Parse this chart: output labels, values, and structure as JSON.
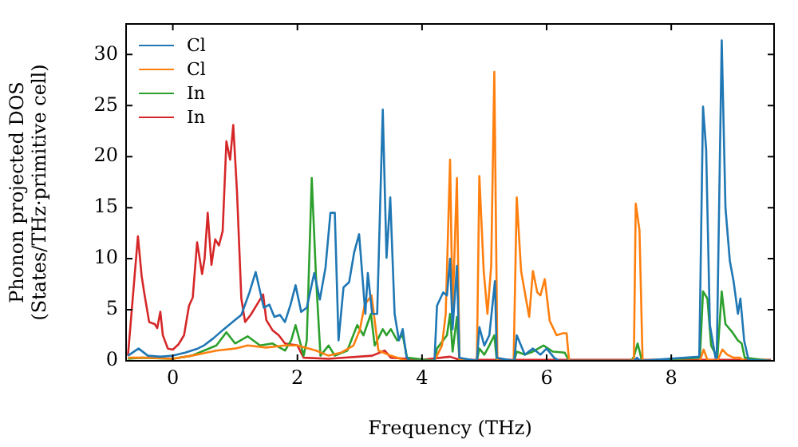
{
  "chart_data": {
    "type": "line",
    "xlabel": "Frequency (THz)",
    "ylabel": "Phonon projected DOS\n(States/THz·primitive cell)",
    "xlim": [
      -0.75,
      9.65
    ],
    "ylim": [
      0,
      33
    ],
    "xticks": [
      0,
      2,
      4,
      6,
      8
    ],
    "yticks": [
      0,
      5,
      10,
      15,
      20,
      25,
      30
    ],
    "grid": false,
    "legend": "top left",
    "marker": "none",
    "line_style": "solid",
    "series": [
      {
        "name": "Cl",
        "color": "#1f77b4",
        "x": [
          -0.72,
          -0.55,
          -0.4,
          -0.2,
          0,
          0.2,
          0.4,
          0.5,
          0.65,
          0.8,
          0.9,
          1.0,
          1.1,
          1.23,
          1.33,
          1.46,
          1.55,
          1.63,
          1.72,
          1.8,
          1.89,
          1.97,
          2.06,
          2.15,
          2.27,
          2.36,
          2.45,
          2.53,
          2.6,
          2.66,
          2.74,
          2.83,
          2.91,
          2.99,
          3.09,
          3.13,
          3.2,
          3.28,
          3.37,
          3.43,
          3.49,
          3.56,
          3.63,
          3.69,
          3.75,
          3.8,
          4.2,
          4.24,
          4.34,
          4.4,
          4.45,
          4.49,
          4.56,
          4.6,
          4.88,
          4.92,
          5.0,
          5.08,
          5.17,
          5.2,
          5.48,
          5.52,
          5.65,
          5.78,
          5.9,
          6.0,
          6.12,
          6.2,
          7.4,
          7.45,
          7.5,
          8.45,
          8.51,
          8.56,
          8.62,
          8.71,
          8.73,
          8.81,
          8.87,
          8.94,
          9.0,
          9.07,
          9.11,
          9.17,
          9.24,
          9.6
        ],
        "values": [
          0.5,
          1.2,
          0.5,
          0.4,
          0.5,
          0.8,
          1.2,
          1.5,
          2.2,
          3.0,
          3.5,
          4.0,
          4.5,
          6.7,
          8.7,
          5.2,
          5.5,
          4.3,
          4.5,
          3.8,
          5.5,
          7.4,
          4.8,
          5.2,
          8.6,
          6.0,
          9.1,
          14.5,
          14.5,
          2.0,
          7.2,
          7.7,
          10.6,
          12.4,
          4.6,
          8.6,
          4.6,
          4.6,
          24.6,
          10.1,
          16.0,
          4.6,
          2.0,
          3.1,
          0.4,
          0,
          0,
          5.4,
          6.7,
          6.4,
          10.0,
          3.1,
          9.3,
          0.3,
          0,
          3.3,
          1.5,
          2.5,
          7.8,
          0.3,
          0,
          2.5,
          0.6,
          1.2,
          0.6,
          1.2,
          0.3,
          0,
          0,
          0.3,
          0,
          0.4,
          24.9,
          20.7,
          3.5,
          0.3,
          0.3,
          31.4,
          15.0,
          9.8,
          7.8,
          4.6,
          6.1,
          2.0,
          0.1,
          0
        ]
      },
      {
        "name": "Cl",
        "color": "#ff7f0e",
        "x": [
          -0.72,
          -0.4,
          0,
          0.3,
          0.7,
          1.0,
          1.2,
          1.5,
          1.8,
          2.0,
          2.3,
          2.5,
          2.7,
          2.9,
          3.0,
          3.08,
          3.19,
          3.3,
          3.5,
          3.75,
          4.2,
          4.32,
          4.38,
          4.45,
          4.49,
          4.56,
          4.6,
          4.88,
          4.92,
          4.99,
          5.05,
          5.11,
          5.16,
          5.21,
          5.47,
          5.52,
          5.59,
          5.65,
          5.72,
          5.78,
          5.85,
          5.9,
          5.97,
          6.05,
          6.16,
          6.26,
          6.32,
          6.36,
          7.37,
          7.4,
          7.43,
          7.49,
          7.54,
          8.46,
          8.52,
          8.58,
          8.74,
          8.82,
          8.9,
          9.0,
          9.1,
          9.17,
          9.6
        ],
        "values": [
          0.3,
          0.3,
          0.2,
          0.5,
          1.0,
          1.2,
          1.5,
          1.3,
          1.5,
          1.5,
          1.0,
          0.5,
          0.8,
          1.5,
          3.0,
          5.5,
          6.4,
          1.0,
          0.5,
          0,
          0,
          1.5,
          4.6,
          19.7,
          4.6,
          17.9,
          0.1,
          0,
          18.1,
          8.8,
          4.6,
          9.3,
          28.3,
          0,
          0,
          16.0,
          8.8,
          6.7,
          4.3,
          8.8,
          6.7,
          6.4,
          8.0,
          3.9,
          2.5,
          2.7,
          2.7,
          0,
          0,
          0.2,
          15.4,
          12.8,
          0,
          0,
          1.1,
          0.1,
          0,
          1.1,
          0.6,
          0.3,
          0.3,
          0,
          0
        ]
      },
      {
        "name": "In",
        "color": "#2ca02c",
        "x": [
          -0.72,
          -0.5,
          0,
          0.3,
          0.5,
          0.7,
          0.86,
          1.0,
          1.2,
          1.4,
          1.6,
          1.8,
          1.9,
          1.97,
          2.1,
          2.15,
          2.23,
          2.3,
          2.37,
          2.5,
          2.6,
          2.8,
          2.96,
          3.06,
          3.18,
          3.24,
          3.37,
          3.43,
          3.5,
          3.6,
          3.69,
          3.76,
          4.2,
          4.24,
          4.4,
          4.45,
          4.49,
          4.56,
          4.6,
          4.88,
          4.92,
          5.0,
          5.08,
          5.16,
          5.2,
          5.48,
          5.52,
          5.65,
          5.78,
          5.95,
          6.1,
          6.29,
          6.36,
          7.36,
          7.4,
          7.46,
          7.53,
          8.46,
          8.51,
          8.58,
          8.64,
          8.74,
          8.81,
          8.87,
          8.98,
          9.07,
          9.13,
          9.18,
          9.6
        ],
        "values": [
          0.2,
          0.3,
          0.2,
          0.5,
          1.0,
          1.5,
          2.8,
          1.7,
          2.4,
          1.5,
          1.7,
          1.0,
          2.0,
          3.5,
          0.5,
          2.0,
          17.9,
          8.0,
          0.5,
          1.5,
          0.5,
          1.0,
          3.5,
          2.5,
          4.6,
          1.5,
          3.1,
          2.5,
          3.1,
          2.0,
          2.5,
          0.3,
          0,
          1.2,
          2.5,
          4.6,
          0.9,
          4.3,
          0,
          0,
          1.2,
          0.6,
          1.5,
          2.5,
          0,
          0,
          0.9,
          0.6,
          0.9,
          1.5,
          0.9,
          0.8,
          0,
          0,
          0.4,
          1.7,
          0,
          0.3,
          6.8,
          6.1,
          1.5,
          0.3,
          6.8,
          3.6,
          2.8,
          2.0,
          1.7,
          0.3,
          0
        ]
      },
      {
        "name": "In",
        "color": "#d62728",
        "x": [
          -0.72,
          -0.56,
          -0.5,
          -0.46,
          -0.38,
          -0.29,
          -0.25,
          -0.2,
          -0.16,
          -0.08,
          0,
          0.09,
          0.18,
          0.26,
          0.32,
          0.39,
          0.47,
          0.51,
          0.56,
          0.62,
          0.68,
          0.74,
          0.8,
          0.86,
          0.92,
          0.97,
          1.03,
          1.1,
          1.16,
          1.25,
          1.35,
          1.45,
          1.5,
          1.6,
          1.7,
          1.8,
          2.0,
          2.1,
          2.5,
          3.2,
          3.4,
          3.5,
          4.0,
          4.45,
          4.6,
          9.6
        ],
        "values": [
          0.5,
          12.2,
          8.3,
          6.7,
          3.8,
          3.6,
          3.2,
          4.8,
          2.5,
          1.2,
          1.1,
          1.6,
          2.5,
          5.4,
          6.2,
          11.6,
          8.5,
          10.0,
          14.5,
          9.4,
          11.9,
          11.3,
          12.7,
          21.5,
          19.7,
          23.1,
          16.6,
          6.1,
          3.8,
          4.5,
          5.5,
          6.5,
          4.0,
          3.0,
          2.5,
          1.7,
          1.5,
          0.3,
          0.2,
          0.5,
          1.0,
          0.3,
          0.1,
          0.4,
          0.1,
          0.1
        ]
      }
    ]
  }
}
